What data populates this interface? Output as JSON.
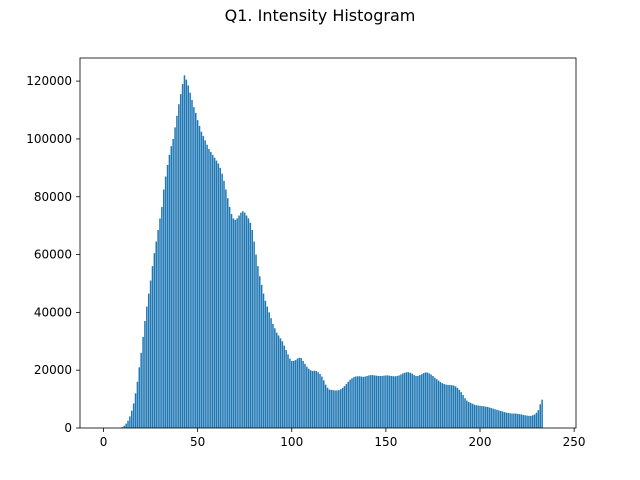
{
  "figure": {
    "title": "Q1. Intensity Histogram"
  },
  "chart_data": {
    "type": "bar",
    "title": "Q1. Intensity Histogram",
    "xlabel": "",
    "ylabel": "",
    "xlim": [
      -12.5,
      251
    ],
    "ylim": [
      0,
      128000
    ],
    "x_ticks": [
      0,
      50,
      100,
      150,
      200,
      250
    ],
    "y_ticks": [
      0,
      20000,
      40000,
      60000,
      80000,
      100000,
      120000
    ],
    "x_tick_labels": [
      "0",
      "50",
      "100",
      "150",
      "200",
      "250"
    ],
    "y_tick_labels": [
      "0",
      "20000",
      "40000",
      "60000",
      "80000",
      "100000",
      "120000"
    ],
    "bar_color": "#1f77b4",
    "grid": false,
    "x_start": 0,
    "values": [
      0,
      0,
      0,
      0,
      0,
      0,
      0,
      0,
      0,
      0,
      300,
      800,
      1500,
      2500,
      4000,
      6000,
      8500,
      12000,
      16000,
      21000,
      26000,
      31500,
      37000,
      42000,
      46500,
      51000,
      56000,
      60500,
      64500,
      68500,
      72500,
      76500,
      82500,
      87000,
      91000,
      94500,
      97500,
      100000,
      104000,
      108000,
      112000,
      115500,
      119000,
      122000,
      120500,
      118500,
      116000,
      113500,
      111000,
      109000,
      106500,
      104500,
      102500,
      101000,
      99500,
      98000,
      96500,
      95500,
      94500,
      93500,
      92500,
      91500,
      90000,
      88000,
      85500,
      82500,
      79500,
      76500,
      74000,
      72500,
      72000,
      72500,
      73500,
      74500,
      75000,
      74500,
      73500,
      72500,
      71000,
      68500,
      64500,
      60000,
      56000,
      52500,
      49500,
      46500,
      44000,
      42000,
      40000,
      38000,
      36000,
      34500,
      33000,
      32000,
      31000,
      30000,
      28500,
      27000,
      25500,
      24000,
      23200,
      23200,
      23500,
      24000,
      24300,
      24200,
      23200,
      22200,
      21200,
      20500,
      20000,
      19700,
      19800,
      19700,
      19300,
      18700,
      17800,
      16500,
      15000,
      13900,
      13300,
      13200,
      13100,
      13000,
      13000,
      13100,
      13400,
      13900,
      14500,
      15200,
      16000,
      16700,
      17200,
      17600,
      17800,
      17900,
      17900,
      17800,
      17700,
      17800,
      18000,
      18200,
      18300,
      18300,
      18200,
      18100,
      18000,
      18000,
      18000,
      18100,
      18200,
      18200,
      18100,
      18000,
      17900,
      17900,
      18000,
      18200,
      18500,
      18900,
      19100,
      19300,
      19300,
      19100,
      18800,
      18300,
      18000,
      18000,
      18300,
      18600,
      19000,
      19200,
      19200,
      18900,
      18500,
      18000,
      17400,
      16900,
      16400,
      15900,
      15500,
      15200,
      15000,
      14900,
      14900,
      14800,
      14700,
      14400,
      13900,
      13200,
      12400,
      11400,
      10300,
      9500,
      9000,
      8700,
      8400,
      8100,
      7900,
      7800,
      7700,
      7600,
      7500,
      7400,
      7300,
      7100,
      6900,
      6700,
      6500,
      6300,
      6100,
      5900,
      5700,
      5500,
      5300,
      5200,
      5100,
      5000,
      5000,
      5000,
      4900,
      4800,
      4700,
      4500,
      4400,
      4300,
      4200,
      4200,
      4400,
      4700,
      5300,
      6200,
      8200,
      9800
    ]
  }
}
